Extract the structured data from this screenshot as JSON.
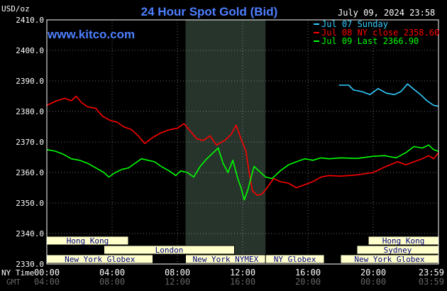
{
  "chart_data": {
    "type": "line",
    "title": "24 Hour Spot Gold (Bid)",
    "date_label": "July 09, 2024 23:58",
    "watermark": "www.kitco.com",
    "y_unit_label": "USD/oz",
    "ylim": [
      2330,
      2410
    ],
    "y_ticks": [
      "2330.0",
      "2340.0",
      "2350.0",
      "2360.0",
      "2370.0",
      "2380.0",
      "2390.0",
      "2400.0",
      "2410.0"
    ],
    "x_axis": {
      "row1_label": "NY Time",
      "row2_label": "GMT",
      "ny_ticks": [
        "00:00",
        "04:00",
        "08:00",
        "12:00",
        "16:00",
        "20:00",
        "23:59"
      ],
      "gmt_ticks": [
        "04:00",
        "08:00",
        "12:00",
        "16:00",
        "20:00",
        "00:00",
        "03:59"
      ],
      "xlim_hours": [
        0,
        24
      ]
    },
    "session_bars": [
      {
        "label": "Hong Kong",
        "row": 1,
        "start": 0.0,
        "end": 5.0
      },
      {
        "label": "Hong Kong",
        "row": 1,
        "start": 19.7,
        "end": 24.0
      },
      {
        "label": "London",
        "row": 2,
        "start": 3.5,
        "end": 11.5
      },
      {
        "label": "Sydney",
        "row": 2,
        "start": 19.0,
        "end": 24.0
      },
      {
        "label": "New York Globex",
        "row": 3,
        "start": 0.0,
        "end": 6.5
      },
      {
        "label": "New York NYMEX",
        "row": 3,
        "start": 8.5,
        "end": 13.4
      },
      {
        "label": "NY Globex",
        "row": 3,
        "start": 13.4,
        "end": 17.0
      },
      {
        "label": "New York Globex",
        "row": 3,
        "start": 18.0,
        "end": 24.0
      }
    ],
    "shaded_region": {
      "start": 8.5,
      "end": 13.4
    },
    "series": [
      {
        "name": "Jul 07 Sunday",
        "color": "#33ccff",
        "points": [
          [
            17.9,
            2388.6
          ],
          [
            18.5,
            2388.6
          ],
          [
            18.8,
            2387.0
          ],
          [
            19.3,
            2386.5
          ],
          [
            19.8,
            2385.5
          ],
          [
            20.3,
            2387.5
          ],
          [
            20.8,
            2386.0
          ],
          [
            21.3,
            2385.5
          ],
          [
            21.7,
            2386.5
          ],
          [
            22.1,
            2389.0
          ],
          [
            22.5,
            2387.2
          ],
          [
            22.9,
            2385.5
          ],
          [
            23.3,
            2383.5
          ],
          [
            23.7,
            2382.0
          ],
          [
            24.0,
            2381.7
          ]
        ]
      },
      {
        "name": "Jul 08 NY close 2358.60",
        "color": "#ff0000",
        "points": [
          [
            0.0,
            2382.0
          ],
          [
            0.6,
            2383.5
          ],
          [
            1.1,
            2384.3
          ],
          [
            1.5,
            2383.5
          ],
          [
            1.8,
            2385.0
          ],
          [
            2.1,
            2383.0
          ],
          [
            2.5,
            2381.5
          ],
          [
            3.0,
            2381.0
          ],
          [
            3.4,
            2378.5
          ],
          [
            3.9,
            2377.0
          ],
          [
            4.3,
            2376.5
          ],
          [
            4.7,
            2375.0
          ],
          [
            5.2,
            2374.0
          ],
          [
            5.6,
            2372.0
          ],
          [
            6.0,
            2369.5
          ],
          [
            6.5,
            2371.5
          ],
          [
            7.0,
            2373.0
          ],
          [
            7.5,
            2374.0
          ],
          [
            8.0,
            2374.5
          ],
          [
            8.4,
            2376.0
          ],
          [
            8.8,
            2373.5
          ],
          [
            9.2,
            2371.0
          ],
          [
            9.6,
            2370.5
          ],
          [
            10.0,
            2372.0
          ],
          [
            10.4,
            2369.0
          ],
          [
            10.9,
            2370.5
          ],
          [
            11.3,
            2372.5
          ],
          [
            11.6,
            2375.5
          ],
          [
            11.9,
            2371.0
          ],
          [
            12.2,
            2367.0
          ],
          [
            12.4,
            2360.0
          ],
          [
            12.6,
            2354.0
          ],
          [
            12.9,
            2352.5
          ],
          [
            13.2,
            2353.0
          ],
          [
            13.5,
            2355.0
          ],
          [
            13.9,
            2358.0
          ],
          [
            14.3,
            2357.0
          ],
          [
            14.8,
            2356.5
          ],
          [
            15.3,
            2355.0
          ],
          [
            15.8,
            2356.0
          ],
          [
            16.3,
            2357.0
          ],
          [
            16.8,
            2358.5
          ],
          [
            17.3,
            2359.0
          ],
          [
            18.0,
            2358.8
          ],
          [
            19.0,
            2359.2
          ],
          [
            20.0,
            2360.0
          ],
          [
            20.8,
            2362.0
          ],
          [
            21.5,
            2363.5
          ],
          [
            22.0,
            2362.5
          ],
          [
            22.5,
            2363.5
          ],
          [
            23.0,
            2364.5
          ],
          [
            23.4,
            2365.5
          ],
          [
            23.7,
            2364.5
          ],
          [
            24.0,
            2366.5
          ]
        ]
      },
      {
        "name": "Jul 09 Last 2366.90",
        "color": "#00ff00",
        "points": [
          [
            0.0,
            2367.5
          ],
          [
            0.5,
            2367.0
          ],
          [
            1.0,
            2366.0
          ],
          [
            1.5,
            2364.5
          ],
          [
            2.0,
            2364.0
          ],
          [
            2.5,
            2363.0
          ],
          [
            3.0,
            2361.5
          ],
          [
            3.5,
            2360.0
          ],
          [
            3.8,
            2358.5
          ],
          [
            4.2,
            2360.0
          ],
          [
            4.6,
            2361.0
          ],
          [
            5.0,
            2361.5
          ],
          [
            5.4,
            2363.0
          ],
          [
            5.8,
            2364.5
          ],
          [
            6.2,
            2364.0
          ],
          [
            6.6,
            2363.5
          ],
          [
            7.0,
            2362.0
          ],
          [
            7.5,
            2360.5
          ],
          [
            7.9,
            2359.0
          ],
          [
            8.2,
            2360.5
          ],
          [
            8.6,
            2360.0
          ],
          [
            9.0,
            2358.5
          ],
          [
            9.4,
            2362.0
          ],
          [
            9.8,
            2364.5
          ],
          [
            10.2,
            2366.5
          ],
          [
            10.5,
            2368.0
          ],
          [
            10.8,
            2363.0
          ],
          [
            11.1,
            2360.0
          ],
          [
            11.4,
            2364.0
          ],
          [
            11.7,
            2358.0
          ],
          [
            11.9,
            2355.0
          ],
          [
            12.1,
            2351.0
          ],
          [
            12.3,
            2354.0
          ],
          [
            12.5,
            2358.0
          ],
          [
            12.7,
            2362.0
          ],
          [
            13.0,
            2360.5
          ],
          [
            13.4,
            2358.5
          ],
          [
            13.8,
            2358.0
          ],
          [
            14.3,
            2360.5
          ],
          [
            14.8,
            2362.5
          ],
          [
            15.3,
            2363.5
          ],
          [
            15.8,
            2364.5
          ],
          [
            16.3,
            2364.0
          ],
          [
            16.8,
            2364.8
          ],
          [
            17.3,
            2364.5
          ],
          [
            18.0,
            2364.8
          ],
          [
            19.0,
            2364.6
          ],
          [
            20.0,
            2365.3
          ],
          [
            20.7,
            2365.5
          ],
          [
            21.4,
            2364.8
          ],
          [
            22.0,
            2366.5
          ],
          [
            22.5,
            2368.5
          ],
          [
            23.0,
            2368.0
          ],
          [
            23.4,
            2369.0
          ],
          [
            23.7,
            2367.5
          ],
          [
            24.0,
            2366.9
          ]
        ]
      }
    ],
    "colors": {
      "background": "#000000",
      "plot_border": "#ffffff",
      "grid": "#cccccc",
      "title": "#4d7fff",
      "watermark": "#4d7fff",
      "date_text": "#ffffff",
      "axis_text": "#ffffff",
      "gmt_text": "#666666",
      "session_bar_fill": "#ffffcc",
      "session_bar_border": "#000000",
      "session_text": "#000080",
      "shade": "#27342c"
    }
  }
}
